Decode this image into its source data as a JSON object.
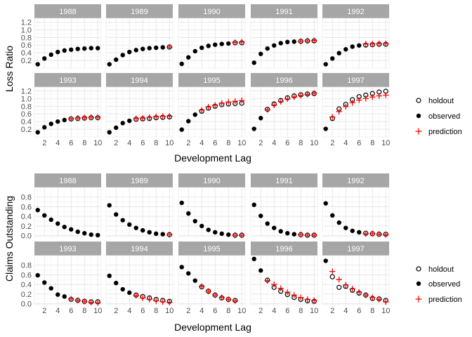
{
  "chart_data": [
    {
      "type": "scatter",
      "ylabel": "Loss Ratio",
      "xlabel": "Development Lag",
      "ylim": [
        0,
        1.3
      ],
      "yticks": [
        0.2,
        0.4,
        0.6,
        0.8,
        1.0,
        1.2
      ],
      "ytick_labels": [
        "0.2",
        "0.4",
        "0.6",
        "0.8",
        "1.0",
        "1.2"
      ],
      "xlim": [
        0.5,
        10.5
      ],
      "xticks": [
        2,
        4,
        6,
        8,
        10
      ],
      "xtick_labels": [
        "2",
        "4",
        "6",
        "8",
        "10"
      ],
      "legend": {
        "position": "right",
        "items": [
          {
            "label": "holdout",
            "marker": "open-circle"
          },
          {
            "label": "observed",
            "marker": "filled-circle"
          },
          {
            "label": "prediction",
            "marker": "plus",
            "color": "#ff0000"
          }
        ]
      },
      "panels": [
        {
          "title": "1988",
          "observed": [
            0.1,
            0.25,
            0.35,
            0.42,
            0.46,
            0.48,
            0.5,
            0.51,
            0.52,
            0.52
          ],
          "holdout": [],
          "prediction": []
        },
        {
          "title": "1989",
          "observed": [
            0.1,
            0.22,
            0.34,
            0.42,
            0.47,
            0.5,
            0.52,
            0.53,
            0.54
          ],
          "holdout": [
            0.55
          ],
          "prediction": [
            0.55
          ]
        },
        {
          "title": "1990",
          "observed": [
            0.11,
            0.28,
            0.44,
            0.53,
            0.58,
            0.61,
            0.63,
            0.64
          ],
          "holdout": [
            0.66,
            0.66
          ],
          "prediction": [
            0.67,
            0.68
          ]
        },
        {
          "title": "1991",
          "observed": [
            0.14,
            0.37,
            0.51,
            0.59,
            0.65,
            0.68,
            0.69
          ],
          "holdout": [
            0.7,
            0.71,
            0.71
          ],
          "prediction": [
            0.7,
            0.71,
            0.72
          ]
        },
        {
          "title": "1992",
          "observed": [
            0.1,
            0.25,
            0.39,
            0.49,
            0.56,
            0.59
          ],
          "holdout": [
            0.6,
            0.61,
            0.62,
            0.62
          ],
          "prediction": [
            0.63,
            0.63,
            0.64,
            0.64
          ]
        },
        {
          "title": "1993",
          "observed": [
            0.12,
            0.25,
            0.34,
            0.4,
            0.44
          ],
          "holdout": [
            0.47,
            0.48,
            0.49,
            0.5,
            0.5
          ],
          "prediction": [
            0.47,
            0.49,
            0.5,
            0.51,
            0.51
          ]
        },
        {
          "title": "1994",
          "observed": [
            0.12,
            0.24,
            0.36,
            0.42
          ],
          "holdout": [
            0.46,
            0.47,
            0.48,
            0.5,
            0.51,
            0.52
          ],
          "prediction": [
            0.48,
            0.49,
            0.51,
            0.53,
            0.54,
            0.54
          ]
        },
        {
          "title": "1995",
          "observed": [
            0.19,
            0.41,
            0.58
          ],
          "holdout": [
            0.67,
            0.75,
            0.8,
            0.84,
            0.86,
            0.87,
            0.88
          ],
          "prediction": [
            0.7,
            0.78,
            0.83,
            0.88,
            0.91,
            0.93,
            0.95
          ]
        },
        {
          "title": "1996",
          "observed": [
            0.21,
            0.49
          ],
          "holdout": [
            0.72,
            0.86,
            0.95,
            1.02,
            1.07,
            1.1,
            1.12,
            1.13
          ],
          "prediction": [
            0.71,
            0.83,
            0.92,
            0.99,
            1.04,
            1.08,
            1.11,
            1.14
          ]
        },
        {
          "title": "1997",
          "observed": [
            0.21
          ],
          "holdout": [
            0.48,
            0.73,
            0.85,
            0.97,
            1.05,
            1.09,
            1.13,
            1.17,
            1.19
          ],
          "prediction": [
            0.52,
            0.66,
            0.79,
            0.89,
            0.96,
            1.0,
            1.04,
            1.07,
            1.09
          ]
        }
      ]
    },
    {
      "type": "scatter",
      "ylabel": "Claims Outstanding",
      "xlabel": "Development Lag",
      "ylim": [
        -0.02,
        1.0
      ],
      "yticks": [
        0.0,
        0.2,
        0.4,
        0.6,
        0.8
      ],
      "ytick_labels": [
        "0.0",
        "0.2",
        "0.4",
        "0.6",
        "0.8"
      ],
      "xlim": [
        0.5,
        10.5
      ],
      "xticks": [
        2,
        4,
        6,
        8,
        10
      ],
      "xtick_labels": [
        "2",
        "4",
        "6",
        "8",
        "10"
      ],
      "legend": {
        "position": "right",
        "items": [
          {
            "label": "holdout",
            "marker": "open-circle"
          },
          {
            "label": "observed",
            "marker": "filled-circle"
          },
          {
            "label": "prediction",
            "marker": "plus",
            "color": "#ff0000"
          }
        ]
      },
      "panels": [
        {
          "title": "1988",
          "observed": [
            0.53,
            0.42,
            0.33,
            0.25,
            0.18,
            0.13,
            0.08,
            0.05,
            0.02,
            0.01
          ],
          "holdout": [],
          "prediction": []
        },
        {
          "title": "1989",
          "observed": [
            0.63,
            0.44,
            0.32,
            0.23,
            0.16,
            0.11,
            0.07,
            0.04,
            0.03
          ],
          "holdout": [
            0.02
          ],
          "prediction": [
            0.02
          ]
        },
        {
          "title": "1990",
          "observed": [
            0.68,
            0.46,
            0.3,
            0.2,
            0.12,
            0.07,
            0.04,
            0.02
          ],
          "holdout": [
            0.01,
            0.01
          ],
          "prediction": [
            0.01,
            0.01
          ]
        },
        {
          "title": "1991",
          "observed": [
            0.64,
            0.41,
            0.25,
            0.16,
            0.09,
            0.05,
            0.03
          ],
          "holdout": [
            0.02,
            0.01,
            0.01
          ],
          "prediction": [
            0.02,
            0.01,
            0.01
          ]
        },
        {
          "title": "1992",
          "observed": [
            0.67,
            0.42,
            0.27,
            0.16,
            0.1,
            0.07
          ],
          "holdout": [
            0.05,
            0.04,
            0.03,
            0.03
          ],
          "prediction": [
            0.04,
            0.04,
            0.03,
            0.02
          ]
        },
        {
          "title": "1993",
          "observed": [
            0.59,
            0.44,
            0.32,
            0.19,
            0.15
          ],
          "holdout": [
            0.09,
            0.07,
            0.05,
            0.04,
            0.04
          ],
          "prediction": [
            0.1,
            0.07,
            0.05,
            0.03,
            0.02
          ]
        },
        {
          "title": "1994",
          "observed": [
            0.58,
            0.43,
            0.3,
            0.23
          ],
          "holdout": [
            0.18,
            0.15,
            0.12,
            0.09,
            0.07,
            0.05
          ],
          "prediction": [
            0.17,
            0.12,
            0.09,
            0.06,
            0.04,
            0.03
          ]
        },
        {
          "title": "1995",
          "observed": [
            0.76,
            0.63,
            0.48
          ],
          "holdout": [
            0.35,
            0.26,
            0.18,
            0.12,
            0.09,
            0.07
          ],
          "prediction": [
            0.36,
            0.26,
            0.18,
            0.13,
            0.09,
            0.06
          ]
        },
        {
          "title": "1996",
          "observed": [
            0.93,
            0.69
          ],
          "holdout": [
            0.49,
            0.34,
            0.26,
            0.19,
            0.13,
            0.09,
            0.06,
            0.05
          ],
          "prediction": [
            0.48,
            0.4,
            0.32,
            0.24,
            0.18,
            0.13,
            0.09,
            0.07
          ]
        },
        {
          "title": "1997",
          "observed": [
            0.89
          ],
          "holdout": [
            0.56,
            0.34,
            0.36,
            0.28,
            0.22,
            0.18,
            0.11,
            0.1,
            0.07
          ],
          "prediction": [
            0.67,
            0.5,
            0.39,
            0.31,
            0.24,
            0.18,
            0.13,
            0.09,
            0.04
          ]
        }
      ]
    }
  ]
}
